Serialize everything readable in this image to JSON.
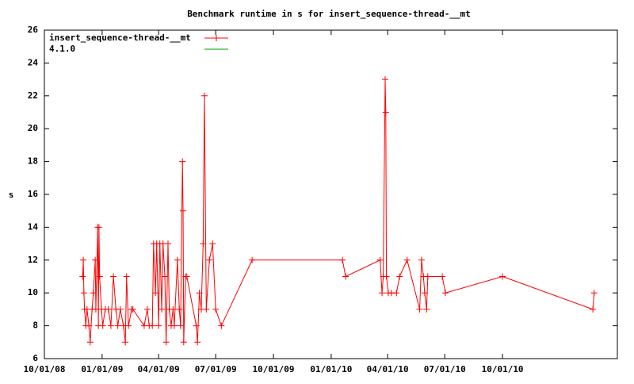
{
  "chart_data": {
    "type": "line",
    "title": "Benchmark runtime in s for insert_sequence-thread-__mt",
    "y_label": "s",
    "xlim": [
      "2008-10-01",
      "2011-04-02"
    ],
    "xticks": [
      {
        "value": "2008-10-01",
        "label": "10/01/08"
      },
      {
        "value": "2009-01-01",
        "label": "01/01/09"
      },
      {
        "value": "2009-04-01",
        "label": "04/01/09"
      },
      {
        "value": "2009-07-01",
        "label": "07/01/09"
      },
      {
        "value": "2009-10-01",
        "label": "10/01/09"
      },
      {
        "value": "2010-01-01",
        "label": "01/01/10"
      },
      {
        "value": "2010-04-01",
        "label": "04/01/10"
      },
      {
        "value": "2010-07-01",
        "label": "07/01/10"
      },
      {
        "value": "2010-10-01",
        "label": "10/01/10"
      }
    ],
    "ylim": [
      6,
      26
    ],
    "yticks": [
      6,
      8,
      10,
      12,
      14,
      16,
      18,
      20,
      22,
      24,
      26
    ],
    "legend": "top-left",
    "series": [
      {
        "name": "insert_sequence-thread-__mt",
        "color": "#ff0000",
        "x": [
          "2008-12-01",
          "2008-12-02",
          "2008-12-03",
          "2008-12-04",
          "2008-12-06",
          "2008-12-08",
          "2008-12-11",
          "2008-12-13",
          "2008-12-16",
          "2008-12-18",
          "2008-12-21",
          "2008-12-22",
          "2008-12-25",
          "2008-12-26",
          "2008-12-27",
          "2008-12-28",
          "2008-12-31",
          "2009-01-02",
          "2009-01-06",
          "2009-01-11",
          "2009-01-15",
          "2009-01-19",
          "2009-01-23",
          "2009-01-26",
          "2009-01-30",
          "2009-02-04",
          "2009-02-07",
          "2009-02-09",
          "2009-02-12",
          "2009-02-17",
          "2009-02-19",
          "2009-03-09",
          "2009-03-14",
          "2009-03-17",
          "2009-03-22",
          "2009-03-24",
          "2009-03-27",
          "2009-03-29",
          "2009-04-01",
          "2009-04-03",
          "2009-04-06",
          "2009-04-08",
          "2009-04-11",
          "2009-04-13",
          "2009-04-16",
          "2009-04-18",
          "2009-04-21",
          "2009-04-24",
          "2009-04-26",
          "2009-05-01",
          "2009-05-04",
          "2009-05-06",
          "2009-05-09",
          "2009-05-10",
          "2009-05-11",
          "2009-05-14",
          "2009-05-16",
          "2009-05-31",
          "2009-06-02",
          "2009-06-05",
          "2009-06-08",
          "2009-06-11",
          "2009-06-13",
          "2009-06-16",
          "2009-06-21",
          "2009-06-26",
          "2009-07-01",
          "2009-07-10",
          "2009-08-28",
          "2010-01-19",
          "2010-01-24",
          "2010-03-20",
          "2010-03-23",
          "2010-03-25",
          "2010-03-28",
          "2010-03-29",
          "2010-03-30",
          "2010-04-02",
          "2010-04-07",
          "2010-04-15",
          "2010-04-20",
          "2010-05-02",
          "2010-05-22",
          "2010-05-25",
          "2010-05-28",
          "2010-05-30",
          "2010-06-02",
          "2010-06-04",
          "2010-06-27",
          "2010-07-02",
          "2010-10-01",
          "2011-02-22",
          "2011-02-24"
        ],
        "values": [
          11,
          12,
          10,
          9,
          8,
          9,
          8,
          7,
          9,
          10,
          12,
          9,
          14,
          8,
          14,
          11,
          9,
          8,
          9,
          9,
          8,
          11,
          9,
          8,
          9,
          8,
          7,
          11,
          8,
          9,
          9,
          8,
          9,
          8,
          8,
          13,
          10,
          13,
          8,
          13,
          9,
          13,
          11,
          7,
          13,
          9,
          8,
          9,
          8,
          12,
          9,
          8,
          18,
          15,
          7,
          11,
          11,
          8,
          7,
          10,
          9,
          13,
          22,
          9,
          12,
          13,
          9,
          8,
          12,
          12,
          11,
          12,
          10,
          11,
          23,
          21,
          11,
          10,
          10,
          10,
          11,
          12,
          9,
          12,
          11,
          10,
          9,
          11,
          11,
          10,
          11,
          9,
          10
        ]
      },
      {
        "name": "4.1.0",
        "color": "#00a000",
        "x": [],
        "values": []
      }
    ]
  }
}
